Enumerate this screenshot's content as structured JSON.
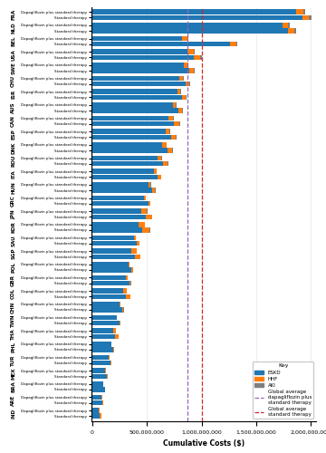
{
  "chart_data": {
    "type": "bar",
    "orientation": "horizontal",
    "stacked": true,
    "xlabel": "Cumulative Costs ($)",
    "categories": [
      "FRA",
      "NLD",
      "BEL",
      "USA",
      "SWE",
      "CHU",
      "ISR",
      "AUS",
      "CAN",
      "ESP",
      "DNK",
      "ROU",
      "ITA",
      "HUN",
      "GRC",
      "JPN",
      "KOR",
      "SAU",
      "SGP",
      "POL",
      "GBR",
      "COL",
      "CHN",
      "TWN",
      "THA",
      "PHL",
      "TUR",
      "MEX",
      "BRA",
      "ARE",
      "IND"
    ],
    "bar_groups": [
      {
        "name": "Dapagliflozin plus standard therapy",
        "series": [
          {
            "name": "ESKD",
            "color": "#1f77b4",
            "values": [
              1870000000,
              1740000000,
              820000000,
              870000000,
              840000000,
              800000000,
              780000000,
              740000000,
              700000000,
              670000000,
              640000000,
              600000000,
              560000000,
              510000000,
              470000000,
              450000000,
              420000000,
              380000000,
              360000000,
              330000000,
              310000000,
              280000000,
              250000000,
              220000000,
              190000000,
              170000000,
              150000000,
              120000000,
              100000000,
              85000000,
              55000000
            ]
          },
          {
            "name": "HHF",
            "color": "#ff7f0e",
            "values": [
              60000000,
              55000000,
              50000000,
              55000000,
              35000000,
              30000000,
              28000000,
              26000000,
              40000000,
              38000000,
              36000000,
              34000000,
              25000000,
              22000000,
              18000000,
              50000000,
              60000000,
              15000000,
              45000000,
              12000000,
              10000000,
              35000000,
              8000000,
              7000000,
              25000000,
              5500000,
              4500000,
              3500000,
              3000000,
              2500000,
              12000000
            ]
          },
          {
            "name": "AKI",
            "color": "#7f7f7f",
            "values": [
              20000000,
              15000000,
              12000000,
              10000000,
              8000000,
              7000000,
              6000000,
              5000000,
              5000000,
              5000000,
              4000000,
              4000000,
              3000000,
              3000000,
              2000000,
              2000000,
              2000000,
              2000000,
              2000000,
              1500000,
              1500000,
              1000000,
              1000000,
              800000,
              700000,
              600000,
              500000,
              400000,
              350000,
              250000,
              100000
            ]
          }
        ]
      },
      {
        "name": "Standard therapy",
        "series": [
          {
            "name": "ESKD",
            "color": "#1f77b4",
            "values": [
              1920000000,
              1790000000,
              1260000000,
              930000000,
              890000000,
              850000000,
              820000000,
              790000000,
              750000000,
              720000000,
              690000000,
              650000000,
              600000000,
              550000000,
              510000000,
              490000000,
              460000000,
              410000000,
              390000000,
              360000000,
              340000000,
              310000000,
              275000000,
              245000000,
              210000000,
              190000000,
              165000000,
              135000000,
              112000000,
              95000000,
              65000000
            ]
          },
          {
            "name": "HHF",
            "color": "#ff7f0e",
            "values": [
              65000000,
              60000000,
              55000000,
              60000000,
              40000000,
              35000000,
              32000000,
              30000000,
              45000000,
              42000000,
              40000000,
              38000000,
              28000000,
              25000000,
              20000000,
              55000000,
              65000000,
              18000000,
              50000000,
              14000000,
              12000000,
              40000000,
              10000000,
              8500000,
              28000000,
              6500000,
              5500000,
              4200000,
              3500000,
              3000000,
              14000000
            ]
          },
          {
            "name": "AKI",
            "color": "#7f7f7f",
            "values": [
              22000000,
              17000000,
              14000000,
              12000000,
              9000000,
              8000000,
              7000000,
              6000000,
              6000000,
              6000000,
              5000000,
              5000000,
              4000000,
              4000000,
              3000000,
              3000000,
              3000000,
              3000000,
              3000000,
              2000000,
              2000000,
              1500000,
              1200000,
              1000000,
              900000,
              750000,
              650000,
              500000,
              420000,
              300000,
              150000
            ]
          }
        ]
      }
    ],
    "reference_lines": [
      {
        "name": "Global average\ndapagliflozin plus\nstandard therapy",
        "value": 870000000,
        "color": "#9467bd",
        "line_style": "dashed"
      },
      {
        "name": "Global average\nstandard therapy",
        "value": 1000000000,
        "color": "#d62728",
        "line_style": "dashed"
      }
    ],
    "xlim": [
      -10000000,
      2050000000
    ],
    "xticks": [
      0,
      {
        "value": 500000000,
        "label": "500,000,000"
      },
      {
        "value": 1000000000,
        "label": "1,000,000,000"
      },
      {
        "value": 1500000000,
        "label": "1,500,000,000"
      },
      {
        "value": 2000000000,
        "label": "2,000,000,000"
      }
    ],
    "grid": true,
    "legend": "lower right",
    "legend_title": "Key"
  }
}
